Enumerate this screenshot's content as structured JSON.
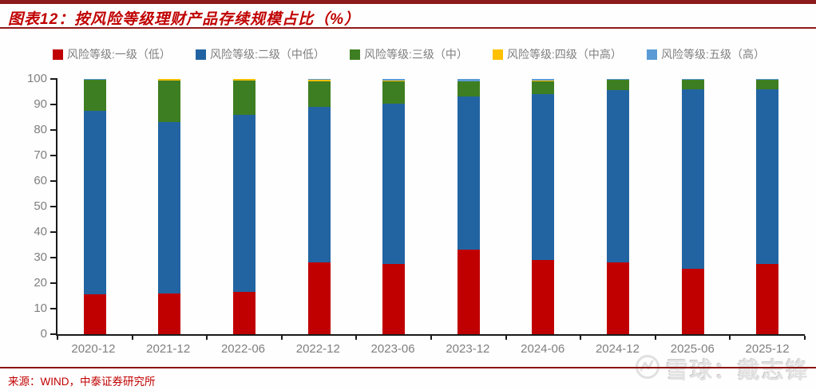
{
  "header": {
    "title": "图表12：按风险等级理财产品存续规模占比（%）"
  },
  "footer": {
    "source": "来源：WIND，中泰证券研究所",
    "watermark": "雪球：戴志锋"
  },
  "colors": {
    "rule_dark_red": "#8e1b1b",
    "title_red": "#c00000",
    "axis_black": "#1a1a1a",
    "tick_gray": "#7f7f7f",
    "watermark_gray": "#e2e2e2"
  },
  "chart_data": {
    "type": "bar",
    "stacked": true,
    "unit": "%",
    "legend_position": "top",
    "grid": false,
    "ylim": [
      0,
      100
    ],
    "yticks": [
      0,
      10,
      20,
      30,
      40,
      50,
      60,
      70,
      80,
      90,
      100
    ],
    "categories": [
      "2020-12",
      "2021-12",
      "2022-06",
      "2022-12",
      "2023-06",
      "2023-12",
      "2024-06",
      "2024-12",
      "2025-06",
      "2025-12"
    ],
    "series": [
      {
        "name": "风险等级:一级（低）",
        "color": "#c00000",
        "values": [
          15.5,
          16.0,
          16.5,
          28.0,
          27.5,
          33.0,
          29.0,
          28.0,
          25.5,
          27.5
        ]
      },
      {
        "name": "风险等级:二级（中低）",
        "color": "#2264a2",
        "values": [
          72.0,
          67.0,
          69.5,
          61.0,
          62.8,
          60.0,
          65.0,
          67.5,
          70.3,
          68.3
        ]
      },
      {
        "name": "风险等级:三级（中）",
        "color": "#3e7e22",
        "values": [
          12.2,
          16.4,
          13.5,
          10.2,
          8.9,
          6.1,
          5.2,
          4.3,
          3.8,
          4.0
        ]
      },
      {
        "name": "风险等级:四级（中高）",
        "color": "#ffc000",
        "values": [
          0.0,
          0.5,
          0.4,
          0.5,
          0.1,
          0.1,
          0.1,
          0.0,
          0.0,
          0.0
        ]
      },
      {
        "name": "风险等级:五级（高）",
        "color": "#5b9bd5",
        "values": [
          0.3,
          0.1,
          0.1,
          0.3,
          0.7,
          0.8,
          0.7,
          0.2,
          0.4,
          0.2
        ]
      }
    ]
  }
}
